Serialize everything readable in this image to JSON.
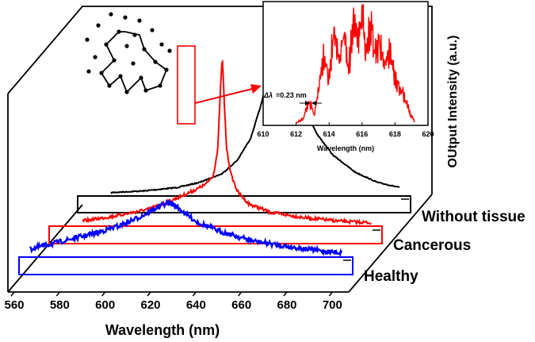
{
  "chart_data": [
    {
      "type": "line",
      "xlabel": "Wavelength (nm)",
      "ylabel": "OUtput Intensity (a.u.)",
      "xlim": [
        560,
        710
      ],
      "x_ticks": [
        "560",
        "580",
        "600",
        "620",
        "640",
        "660",
        "680",
        "700"
      ],
      "series": [
        {
          "name": "Without tissue",
          "color": "#000000",
          "x": [
            575,
            590,
            605,
            615,
            625,
            632,
            638,
            643,
            647,
            650,
            652,
            655,
            658,
            662,
            668,
            675,
            685,
            695,
            705
          ],
          "y": [
            0.02,
            0.03,
            0.05,
            0.08,
            0.13,
            0.21,
            0.34,
            0.55,
            0.8,
            0.95,
            1.0,
            0.92,
            0.72,
            0.52,
            0.36,
            0.24,
            0.14,
            0.08,
            0.05
          ]
        },
        {
          "name": "Cancerous",
          "color": "#ff0000",
          "x": [
            575,
            590,
            605,
            615,
            622,
            627,
            631,
            634,
            636,
            637,
            638,
            639,
            640,
            642,
            645,
            650,
            660,
            675,
            690,
            705
          ],
          "y": [
            0.03,
            0.06,
            0.1,
            0.15,
            0.19,
            0.22,
            0.25,
            0.3,
            0.45,
            0.75,
            1.0,
            0.7,
            0.45,
            0.3,
            0.2,
            0.13,
            0.08,
            0.05,
            0.03,
            0.02
          ]
        },
        {
          "name": "Healthy",
          "color": "#0000ff",
          "x": [
            565,
            580,
            595,
            605,
            612,
            618,
            622,
            625,
            628,
            631,
            635,
            640,
            650,
            665,
            680,
            695,
            705
          ],
          "y": [
            0.15,
            0.3,
            0.45,
            0.58,
            0.7,
            0.82,
            0.92,
            0.98,
            1.0,
            0.93,
            0.8,
            0.65,
            0.48,
            0.3,
            0.2,
            0.12,
            0.08
          ]
        }
      ],
      "series_labels": [
        "Without tissue",
        "Cancerous",
        "Healthy"
      ]
    },
    {
      "type": "line",
      "xlabel": "Wavelength (nm)",
      "xlim": [
        610,
        620
      ],
      "x_ticks": [
        "610",
        "612",
        "614",
        "616",
        "618",
        "620"
      ],
      "annotation": "=0.23 nm",
      "annotation_symbol": "Δλ",
      "series": [
        {
          "color": "#ff0000",
          "x": [
            612.0,
            612.4,
            612.8,
            613.1,
            613.4,
            613.7,
            614.0,
            614.3,
            614.6,
            614.9,
            615.2,
            615.5,
            615.8,
            616.0,
            616.2,
            616.5,
            616.8,
            617.1,
            617.4,
            617.7,
            618.0,
            618.3,
            618.6,
            618.9,
            619.2
          ],
          "y": [
            0.02,
            0.05,
            0.2,
            0.08,
            0.35,
            0.55,
            0.4,
            0.75,
            0.5,
            0.8,
            0.45,
            0.92,
            0.7,
            1.0,
            0.6,
            0.82,
            0.55,
            0.7,
            0.48,
            0.62,
            0.38,
            0.3,
            0.22,
            0.1,
            0.03
          ]
        }
      ]
    }
  ]
}
